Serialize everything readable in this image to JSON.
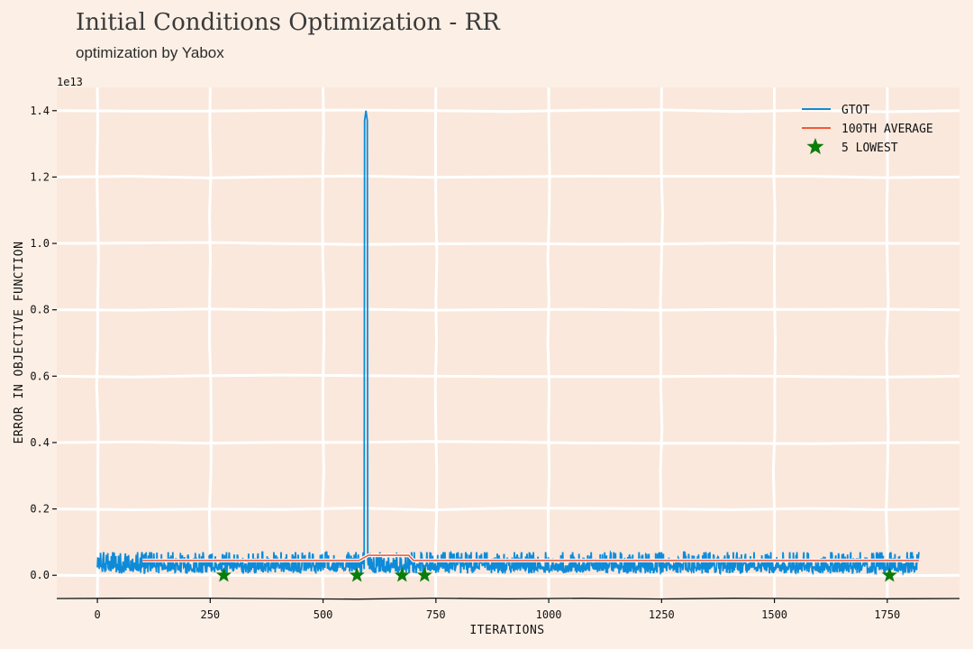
{
  "chart_data": {
    "type": "line",
    "title": "Initial Conditions Optimization - RR",
    "subtitle": "optimization by Yabox",
    "xlabel": "ITERATIONS",
    "ylabel": "ERROR IN OBJECTIVE FUNCTION",
    "y_offset_label": "1e13",
    "xlim": [
      -90,
      1910
    ],
    "ylim": [
      -0.07,
      1.47
    ],
    "xticks": [
      0,
      250,
      500,
      750,
      1000,
      1250,
      1500,
      1750
    ],
    "xtick_labels": [
      "0",
      "250",
      "500",
      "750",
      "1000",
      "1250",
      "1500",
      "1750"
    ],
    "yticks": [
      0.0,
      0.2,
      0.4,
      0.6,
      0.8,
      1.0,
      1.2,
      1.4
    ],
    "ytick_labels": [
      "0.0",
      "0.2",
      "0.4",
      "0.6",
      "0.8",
      "1.0",
      "1.2",
      "1.4"
    ],
    "grid": true,
    "legend_position": "top-right",
    "series": [
      {
        "name": "GTOT",
        "color": "#0d8bd9",
        "style": "line",
        "x_range": [
          0,
          1820
        ],
        "typical_range": [
          0.0,
          0.07
        ],
        "spike": {
          "x": 595,
          "y": 1.4
        }
      },
      {
        "name": "100TH AVERAGE",
        "color": "#f05a3c",
        "style": "line",
        "x": [
          100,
          300,
          500,
          580,
          600,
          690,
          700,
          900,
          1100,
          1300,
          1500,
          1700,
          1820
        ],
        "y": [
          0.045,
          0.045,
          0.045,
          0.045,
          0.06,
          0.06,
          0.045,
          0.045,
          0.045,
          0.045,
          0.045,
          0.045,
          0.045
        ]
      },
      {
        "name": "5 LOWEST",
        "color": "#0a7d0a",
        "style": "star",
        "x": [
          280,
          575,
          675,
          725,
          1755
        ],
        "y": [
          0.0,
          0.0,
          0.0,
          0.0,
          0.0
        ]
      }
    ]
  }
}
